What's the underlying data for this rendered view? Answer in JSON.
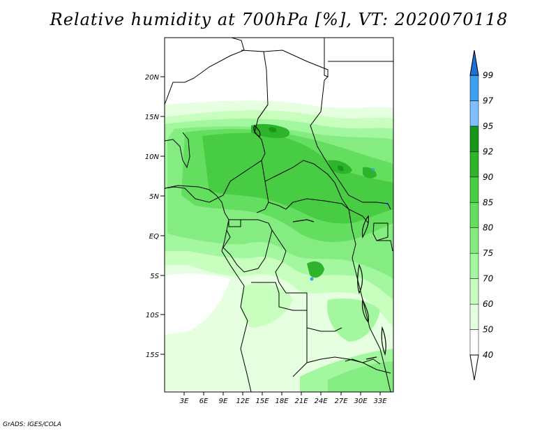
{
  "title": "Relative humidity at 700hPa [%], VT: 2020070118",
  "credit": "GrADS: IGES/COLA",
  "lat_labels": [
    "20N",
    "15N",
    "10N",
    "5N",
    "EQ",
    "5S",
    "10S",
    "15S"
  ],
  "lon_labels": [
    "3E",
    "6E",
    "9E",
    "12E",
    "15E",
    "18E",
    "21E",
    "24E",
    "27E",
    "30E",
    "33E"
  ],
  "colorbar": {
    "levels": [
      "40",
      "50",
      "60",
      "70",
      "75",
      "80",
      "85",
      "90",
      "92",
      "95",
      "97",
      "99"
    ],
    "colors": [
      "#ffffff",
      "#e6ffe1",
      "#c8ffbe",
      "#a3f79e",
      "#84ec80",
      "#63de5e",
      "#47cc43",
      "#2db42a",
      "#17961a",
      "#7fbfff",
      "#3f9fef",
      "#1e6fd6"
    ]
  }
}
